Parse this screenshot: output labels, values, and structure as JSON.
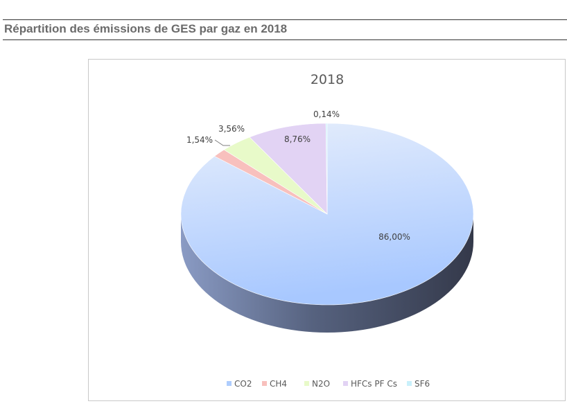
{
  "page": {
    "heading": "Répartition des émissions de GES par gaz en 2018"
  },
  "chart_data": {
    "type": "pie",
    "title": "2018",
    "categories": [
      "CO2",
      "CH4",
      "N2O",
      "HFCs PF Cs",
      "SF6"
    ],
    "values": [
      86.0,
      1.54,
      3.56,
      8.76,
      0.14
    ],
    "labels": [
      "86,00%",
      "1,54%",
      "3,56%",
      "8,76%",
      "0,14%"
    ],
    "colors": [
      "#aecdfd",
      "#f8c0bd",
      "#e8fac9",
      "#e2d3f4",
      "#c9f0fb"
    ],
    "side_color": "#5a6886",
    "legend_position": "bottom",
    "three_d": true
  }
}
